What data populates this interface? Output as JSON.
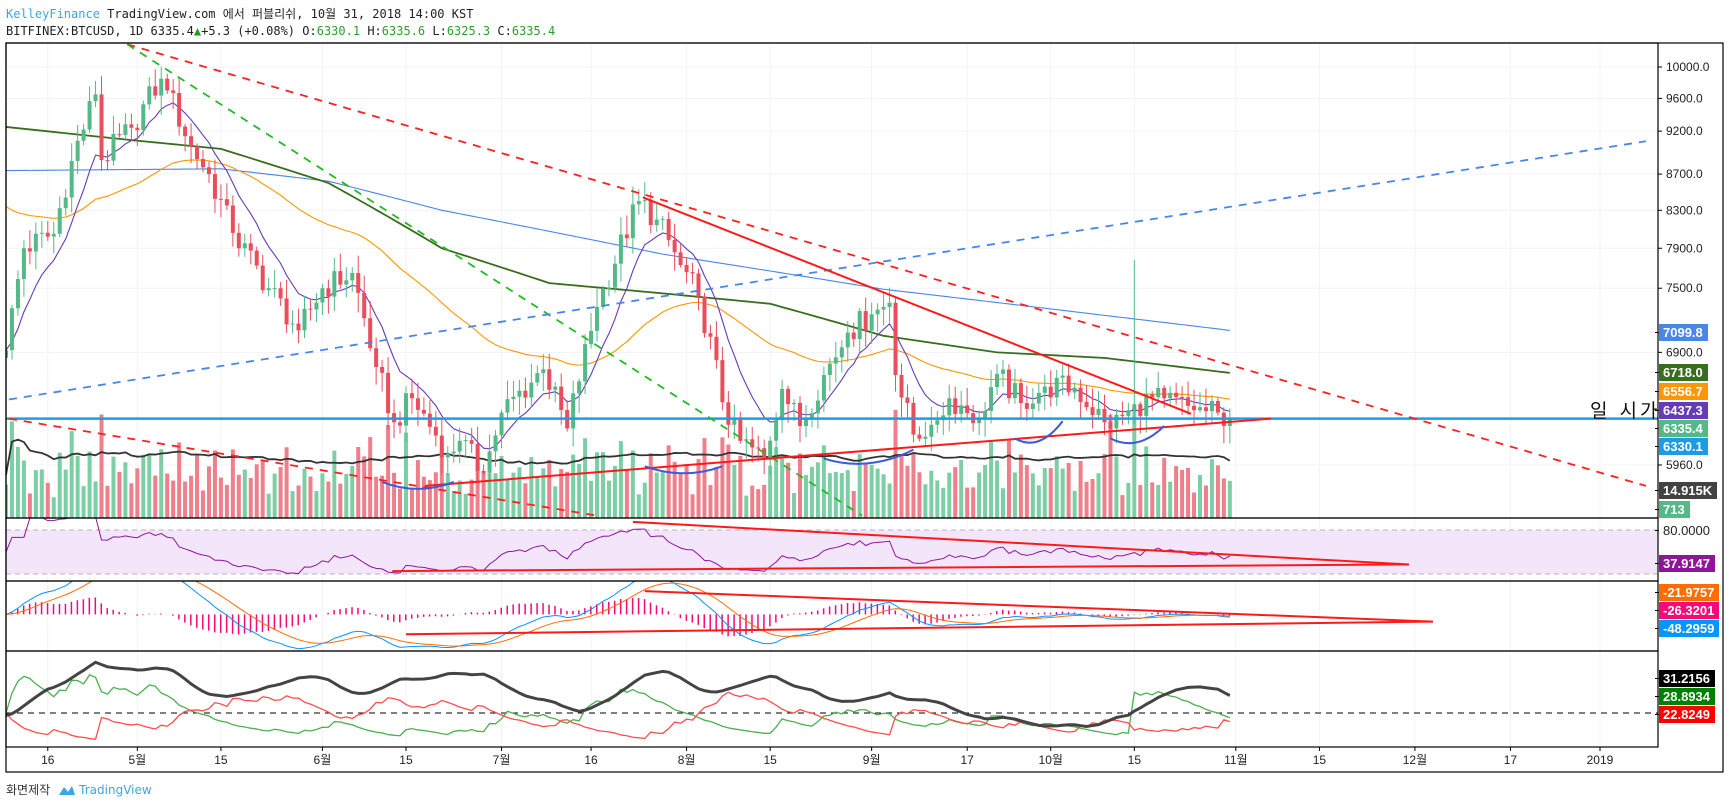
{
  "header": {
    "author": "KelleyFinance",
    "published": "TradingView.com 에서 퍼블리쉬, 10월 31, 2018 14:00 KST",
    "symbol": "BITFINEX:BTCUSD, 1D",
    "last": "6335.4",
    "change": "+5.3 (+0.08%)",
    "o_label": "O:",
    "o": "6330.1",
    "h_label": "H:",
    "h": "6335.6",
    "l_label": "L:",
    "l": "6325.3",
    "c_label": "C:",
    "c": "6335.4"
  },
  "annotation_text": "일 시가",
  "footer": {
    "made_by": "화면제작",
    "brand": "TradingView"
  },
  "price_labels": [
    {
      "text": "7099.8",
      "color": "#4a86e8"
    },
    {
      "text": "6718.0",
      "color": "#3a6e1f"
    },
    {
      "text": "6556.7",
      "color": "#ff9800"
    },
    {
      "text": "6437.3",
      "color": "#673ab7"
    },
    {
      "text": "6335.4",
      "color": "#53b987"
    },
    {
      "text": "6330.1",
      "color": "#1e9be6"
    },
    {
      "text": "14.915K",
      "color": "#424242"
    },
    {
      "text": "713",
      "color": "#53b987"
    }
  ],
  "rsi_labels": [
    {
      "text": "80.0000",
      "color": "#000000"
    },
    {
      "text": "37.9147",
      "color": "#8e1599"
    }
  ],
  "macd_labels": [
    {
      "text": "-21.9757",
      "color": "#ff6d00"
    },
    {
      "text": "-26.3201",
      "color": "#f50a78"
    },
    {
      "text": "-48.2959",
      "color": "#0496ff"
    }
  ],
  "dmi_labels": [
    {
      "text": "31.2156",
      "color": "#000000"
    },
    {
      "text": "28.8934",
      "color": "#008000"
    },
    {
      "text": "22.8249",
      "color": "#ff0000"
    }
  ],
  "chart_data": {
    "type": "candlestick",
    "start_date": "2018-04-09",
    "last_index": 205,
    "price_ticks": [
      "10000.0",
      "9600.0",
      "9200.0",
      "8700.0",
      "8300.0",
      "7900.0",
      "7500.0",
      "6900.0",
      "5960.0"
    ],
    "x_ticks": [
      {
        "label": "16",
        "day": 7
      },
      {
        "label": "5월",
        "day": 22
      },
      {
        "label": "15",
        "day": 36
      },
      {
        "label": "6월",
        "day": 53
      },
      {
        "label": "15",
        "day": 67
      },
      {
        "label": "7월",
        "day": 83
      },
      {
        "label": "16",
        "day": 98
      },
      {
        "label": "8월",
        "day": 114
      },
      {
        "label": "15",
        "day": 128
      },
      {
        "label": "9월",
        "day": 145
      },
      {
        "label": "17",
        "day": 161
      },
      {
        "label": "10월",
        "day": 175
      },
      {
        "label": "15",
        "day": 189
      },
      {
        "label": "11월",
        "day": 206
      },
      {
        "label": "15",
        "day": 220
      },
      {
        "label": "12월",
        "day": 236
      },
      {
        "label": "17",
        "day": 252
      },
      {
        "label": "2019",
        "day": 267
      }
    ],
    "close_anchors": [
      [
        0,
        6920
      ],
      [
        3,
        7900
      ],
      [
        8,
        8050
      ],
      [
        11,
        8850
      ],
      [
        15,
        9650
      ],
      [
        16,
        8860
      ],
      [
        21,
        9240
      ],
      [
        26,
        9850
      ],
      [
        27,
        9700
      ],
      [
        31,
        9020
      ],
      [
        34,
        8700
      ],
      [
        38,
        8060
      ],
      [
        44,
        7500
      ],
      [
        49,
        7100
      ],
      [
        53,
        7500
      ],
      [
        58,
        7650
      ],
      [
        62,
        6770
      ],
      [
        65,
        6300
      ],
      [
        68,
        6500
      ],
      [
        74,
        6050
      ],
      [
        76,
        6150
      ],
      [
        80,
        5900
      ],
      [
        83,
        6380
      ],
      [
        90,
        6750
      ],
      [
        94,
        6250
      ],
      [
        99,
        7320
      ],
      [
        106,
        8400
      ],
      [
        109,
        8200
      ],
      [
        113,
        7730
      ],
      [
        116,
        7420
      ],
      [
        121,
        6280
      ],
      [
        123,
        6150
      ],
      [
        127,
        6000
      ],
      [
        130,
        6580
      ],
      [
        133,
        6270
      ],
      [
        137,
        6700
      ],
      [
        141,
        7080
      ],
      [
        145,
        7250
      ],
      [
        148,
        7360
      ],
      [
        149,
        6700
      ],
      [
        152,
        6200
      ],
      [
        155,
        6280
      ],
      [
        158,
        6500
      ],
      [
        163,
        6340
      ],
      [
        166,
        6710
      ],
      [
        170,
        6460
      ],
      [
        174,
        6600
      ],
      [
        179,
        6590
      ],
      [
        184,
        6300
      ],
      [
        185,
        6250
      ],
      [
        188,
        6400
      ],
      [
        189,
        6450
      ],
      [
        194,
        6500
      ],
      [
        199,
        6400
      ],
      [
        203,
        6380
      ],
      [
        205,
        6335.4
      ]
    ],
    "spike": {
      "day": 189,
      "high": 7780
    },
    "ma_long_blue": [
      [
        0,
        8740
      ],
      [
        36,
        8760
      ],
      [
        54,
        8620
      ],
      [
        73,
        8300
      ],
      [
        110,
        7840
      ],
      [
        147,
        7490
      ],
      [
        184,
        7240
      ],
      [
        205,
        7099.8
      ]
    ],
    "ma_green": [
      [
        0,
        9250
      ],
      [
        20,
        9100
      ],
      [
        36,
        8990
      ],
      [
        54,
        8600
      ],
      [
        73,
        7900
      ],
      [
        91,
        7550
      ],
      [
        110,
        7450
      ],
      [
        128,
        7350
      ],
      [
        147,
        7050
      ],
      [
        166,
        6900
      ],
      [
        184,
        6850
      ],
      [
        205,
        6718.0
      ]
    ],
    "ema_orange": {
      "period": 50,
      "seed": 8400
    },
    "ema_purple": {
      "period": 9
    },
    "horizontal_line": {
      "price": 6330.1,
      "color": "#1e9be6"
    },
    "trendlines": [
      {
        "from": [
          20.3,
          10300
        ],
        "to": [
          274.7,
          5800
        ],
        "color": "#ff2020",
        "dash": true
      },
      {
        "from": [
          0.5,
          6330
        ],
        "to": [
          99,
          5580
        ],
        "color": "#ff2020",
        "dash": true
      },
      {
        "from": [
          20.3,
          10300
        ],
        "to": [
          143.4,
          5580
        ],
        "color": "#22bb22",
        "dash": true
      },
      {
        "from": [
          0.5,
          6490
        ],
        "to": [
          274.7,
          9080
        ],
        "color": "#4a86e8",
        "dash": true
      },
      {
        "from": [
          106.7,
          8440
        ],
        "to": [
          198.5,
          6370
        ],
        "color": "#ff1a1a",
        "dash": false
      },
      {
        "from": [
          70.2,
          5800
        ],
        "to": [
          211.9,
          6330
        ],
        "color": "#ff1a1a",
        "dash": false
      }
    ],
    "arcs": [
      [
        63,
        5830,
        75,
        5830
      ],
      [
        107,
        5950,
        120,
        5950
      ],
      [
        137,
        6010,
        152,
        6080
      ],
      [
        169,
        6170,
        177,
        6310
      ],
      [
        185,
        6170,
        194,
        6270
      ]
    ],
    "rsi": {
      "period": 14,
      "upper": 80,
      "lower": 20,
      "triangle": [
        [
          [
            64.7,
            24
          ],
          [
            235,
            33
          ]
        ],
        [
          [
            105,
            91
          ],
          [
            235,
            33
          ]
        ]
      ]
    },
    "macd": {
      "fast": 12,
      "slow": 26,
      "signal": 9,
      "range": [
        -420,
        380
      ],
      "triangle": [
        [
          [
            67,
            -248
          ],
          [
            239,
            -90
          ]
        ],
        [
          [
            107,
            291
          ],
          [
            239,
            -90
          ]
        ]
      ]
    },
    "dmi": {
      "period": 14,
      "key_level": 20
    }
  }
}
